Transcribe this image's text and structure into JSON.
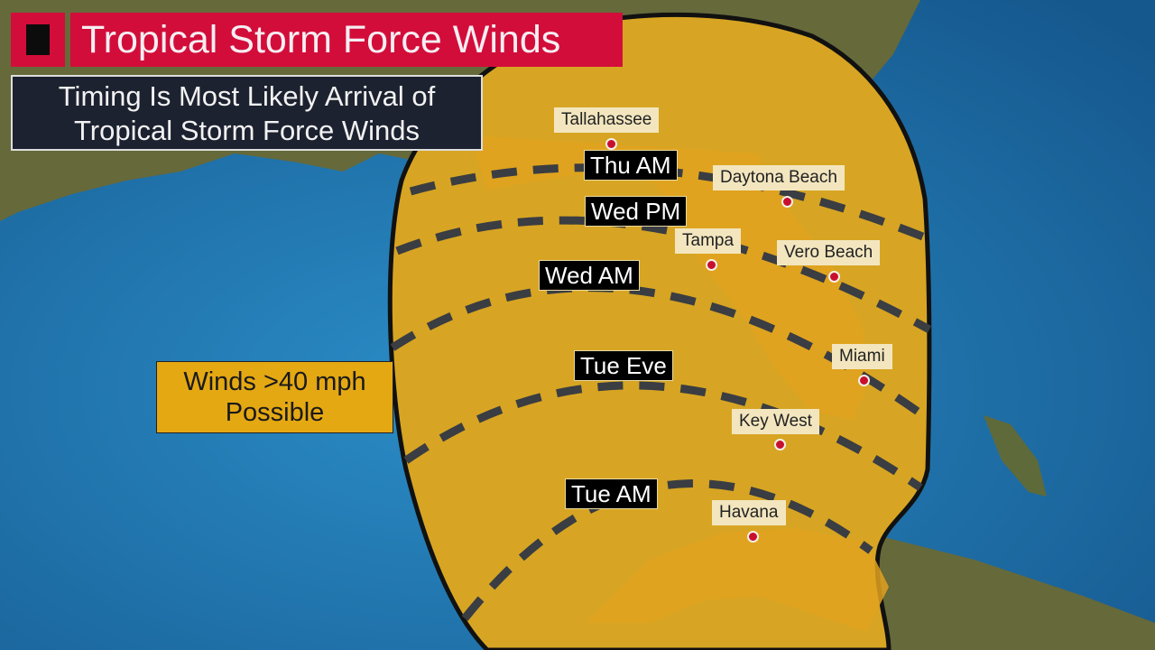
{
  "title": "Tropical Storm Force Winds",
  "subtitle_line1": "Timing Is Most Likely Arrival of",
  "subtitle_line2": "Tropical Storm Force Winds",
  "legend": {
    "line1": "Winds >40 mph",
    "line2": "Possible",
    "color": "#e4a813"
  },
  "colors": {
    "ocean": "#1f6fa8",
    "land": "#6b6a32",
    "cone": "#d7a523",
    "title_red": "#d30d3a",
    "dash": "#3a3d42"
  },
  "time_labels": [
    "Thu AM",
    "Wed PM",
    "Wed AM",
    "Tue Eve",
    "Tue AM"
  ],
  "cities": [
    "Tallahassee",
    "Daytona Beach",
    "Tampa",
    "Vero Beach",
    "Miami",
    "Key West",
    "Havana"
  ]
}
